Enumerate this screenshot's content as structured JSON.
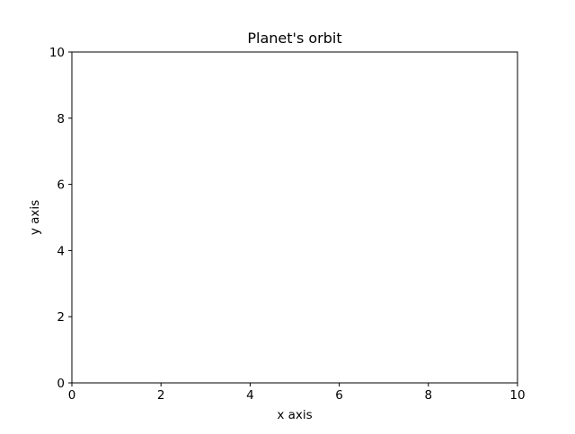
{
  "chart_data": {
    "type": "line",
    "title": "Planet's orbit",
    "xlabel": "x axis",
    "ylabel": "y axis",
    "xlim": [
      0,
      10
    ],
    "ylim": [
      0,
      10
    ],
    "xticks": [
      0,
      2,
      4,
      6,
      8,
      10
    ],
    "yticks": [
      0,
      2,
      4,
      6,
      8,
      10
    ],
    "grid": false,
    "series": []
  },
  "colors": {
    "background": "#ffffff",
    "axes": "#000000",
    "text": "#000000"
  }
}
